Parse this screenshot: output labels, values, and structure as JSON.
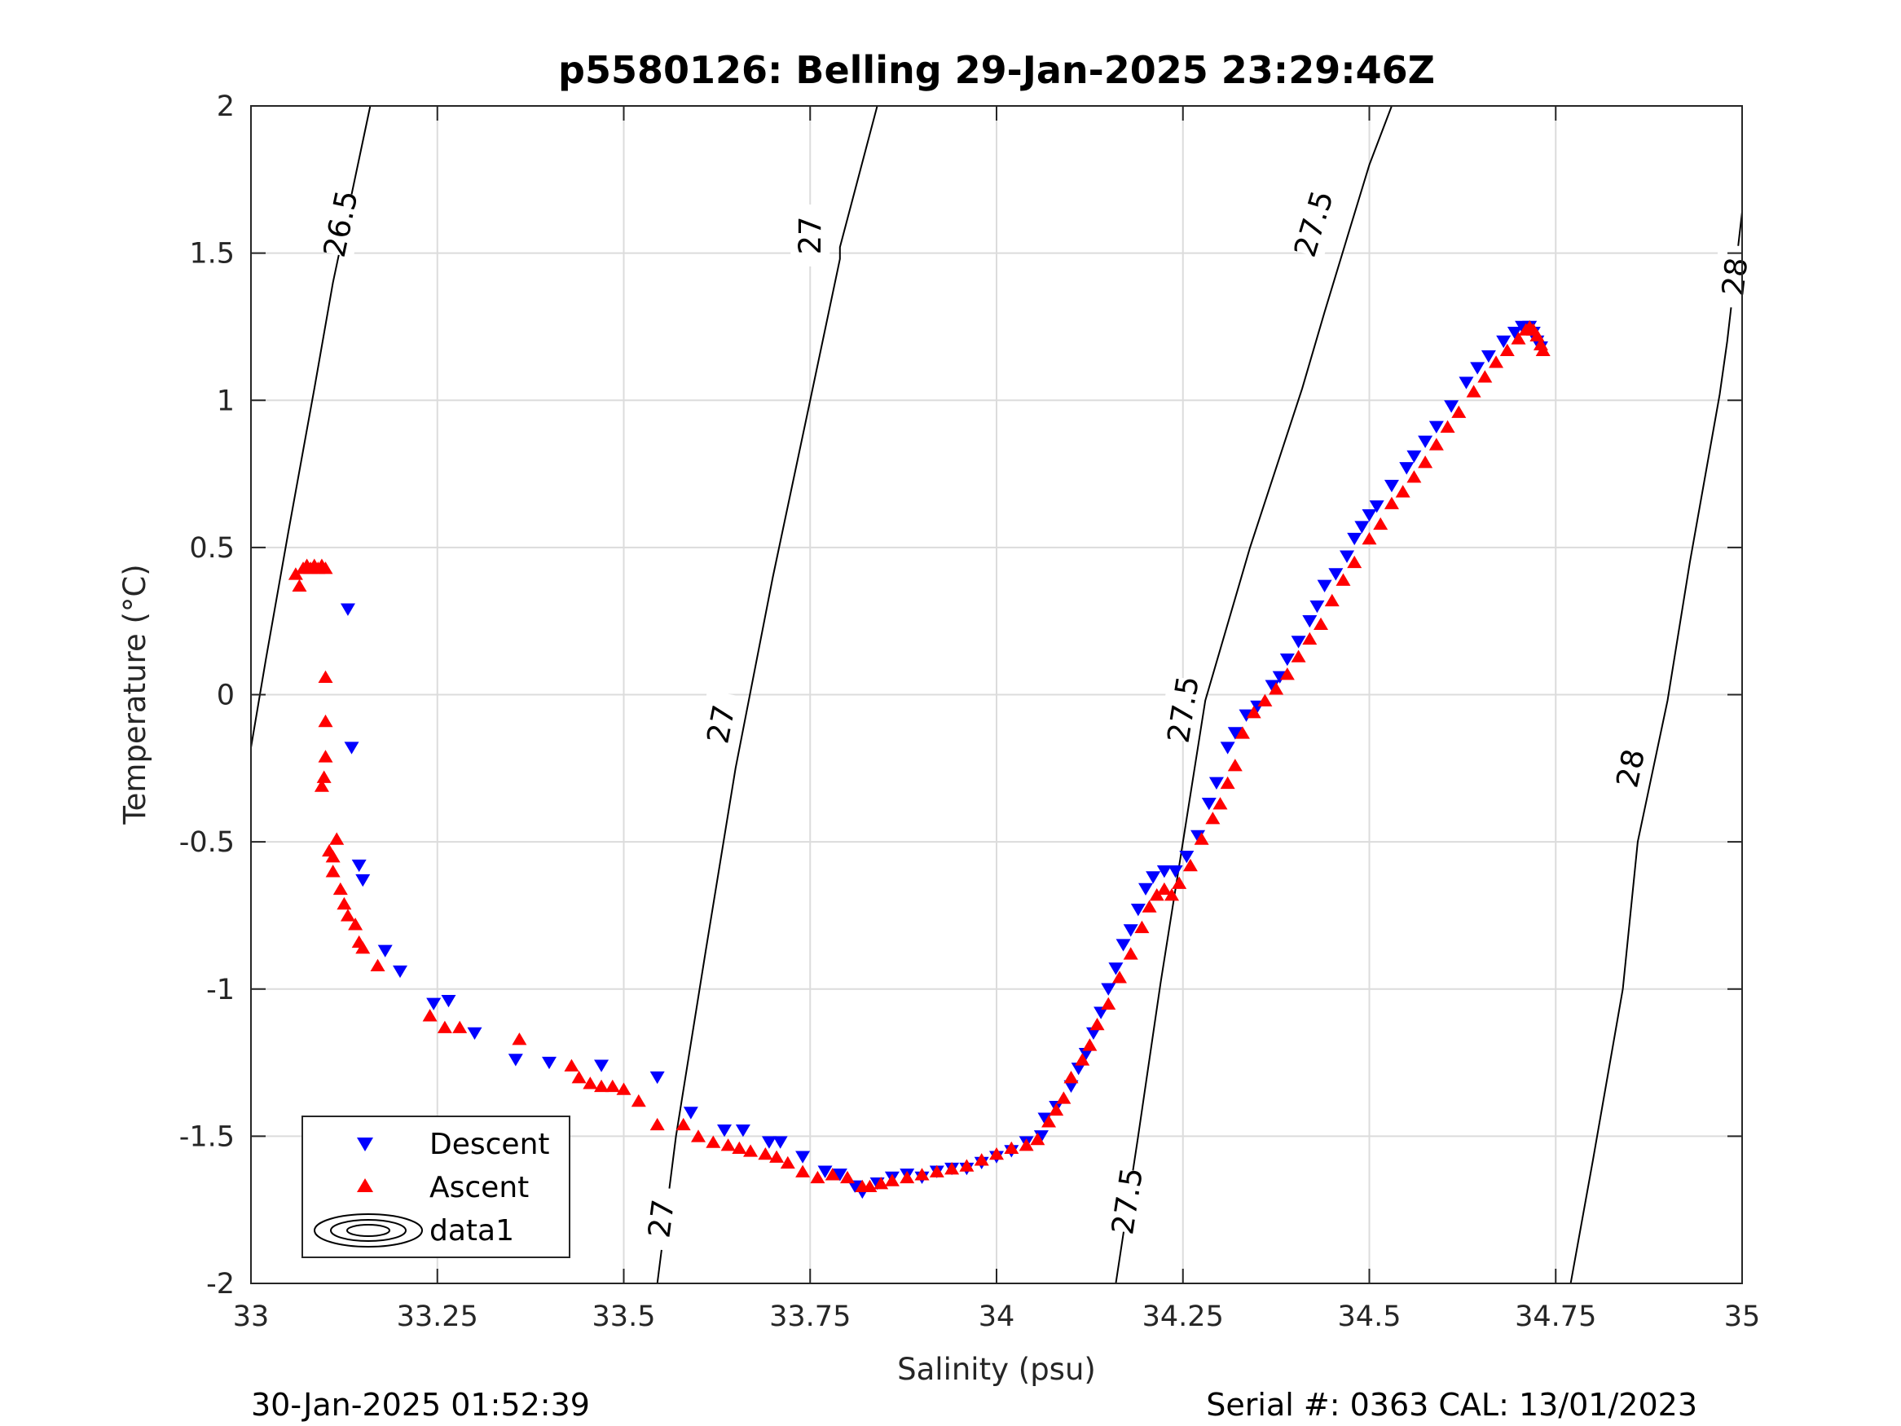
{
  "chart_data": {
    "type": "scatter",
    "title": "p5580126: Belling 29-Jan-2025 23:29:46Z",
    "xlabel": "Salinity (psu)",
    "ylabel": "Temperature (°C)",
    "xlim": [
      33,
      35
    ],
    "ylim": [
      -2,
      2
    ],
    "xticks": [
      33,
      33.25,
      33.5,
      33.75,
      34,
      34.25,
      34.5,
      34.75,
      35
    ],
    "xtick_labels": [
      "33",
      "33.25",
      "33.5",
      "33.75",
      "34",
      "34.25",
      "34.5",
      "34.75",
      "35"
    ],
    "yticks": [
      -2,
      -1.5,
      -1,
      -0.5,
      0,
      0.5,
      1,
      1.5,
      2
    ],
    "ytick_labels": [
      "-2",
      "-1.5",
      "-1",
      "-0.5",
      "0",
      "0.5",
      "1",
      "1.5",
      "2"
    ],
    "grid": true,
    "legend_position": "bottom-left",
    "series": [
      {
        "name": "Descent",
        "marker": "triangle-down",
        "color": "#0000ff",
        "points": [
          [
            33.13,
            0.29
          ],
          [
            33.135,
            -0.18
          ],
          [
            33.145,
            -0.58
          ],
          [
            33.15,
            -0.63
          ],
          [
            33.18,
            -0.87
          ],
          [
            33.2,
            -0.94
          ],
          [
            33.245,
            -1.05
          ],
          [
            33.265,
            -1.04
          ],
          [
            33.3,
            -1.15
          ],
          [
            33.355,
            -1.24
          ],
          [
            33.4,
            -1.25
          ],
          [
            33.47,
            -1.26
          ],
          [
            33.545,
            -1.3
          ],
          [
            33.59,
            -1.42
          ],
          [
            33.635,
            -1.48
          ],
          [
            33.66,
            -1.48
          ],
          [
            33.695,
            -1.52
          ],
          [
            33.71,
            -1.52
          ],
          [
            33.74,
            -1.57
          ],
          [
            33.77,
            -1.62
          ],
          [
            33.79,
            -1.63
          ],
          [
            33.81,
            -1.67
          ],
          [
            33.82,
            -1.69
          ],
          [
            33.84,
            -1.66
          ],
          [
            33.86,
            -1.64
          ],
          [
            33.88,
            -1.63
          ],
          [
            33.9,
            -1.64
          ],
          [
            33.92,
            -1.62
          ],
          [
            33.94,
            -1.61
          ],
          [
            33.96,
            -1.61
          ],
          [
            33.98,
            -1.59
          ],
          [
            34.0,
            -1.57
          ],
          [
            34.02,
            -1.55
          ],
          [
            34.04,
            -1.52
          ],
          [
            34.06,
            -1.5
          ],
          [
            34.065,
            -1.44
          ],
          [
            34.08,
            -1.4
          ],
          [
            34.1,
            -1.33
          ],
          [
            34.11,
            -1.27
          ],
          [
            34.12,
            -1.22
          ],
          [
            34.13,
            -1.15
          ],
          [
            34.14,
            -1.08
          ],
          [
            34.15,
            -1.0
          ],
          [
            34.16,
            -0.93
          ],
          [
            34.17,
            -0.85
          ],
          [
            34.18,
            -0.8
          ],
          [
            34.19,
            -0.73
          ],
          [
            34.2,
            -0.66
          ],
          [
            34.21,
            -0.62
          ],
          [
            34.225,
            -0.6
          ],
          [
            34.24,
            -0.6
          ],
          [
            34.255,
            -0.55
          ],
          [
            34.27,
            -0.48
          ],
          [
            34.285,
            -0.37
          ],
          [
            34.295,
            -0.3
          ],
          [
            34.31,
            -0.18
          ],
          [
            34.32,
            -0.13
          ],
          [
            34.335,
            -0.07
          ],
          [
            34.35,
            -0.04
          ],
          [
            34.37,
            0.03
          ],
          [
            34.38,
            0.06
          ],
          [
            34.39,
            0.12
          ],
          [
            34.405,
            0.18
          ],
          [
            34.42,
            0.25
          ],
          [
            34.43,
            0.3
          ],
          [
            34.44,
            0.37
          ],
          [
            34.455,
            0.41
          ],
          [
            34.47,
            0.47
          ],
          [
            34.48,
            0.53
          ],
          [
            34.49,
            0.57
          ],
          [
            34.5,
            0.61
          ],
          [
            34.51,
            0.64
          ],
          [
            34.53,
            0.71
          ],
          [
            34.55,
            0.77
          ],
          [
            34.56,
            0.81
          ],
          [
            34.575,
            0.86
          ],
          [
            34.59,
            0.91
          ],
          [
            34.61,
            0.98
          ],
          [
            34.63,
            1.06
          ],
          [
            34.645,
            1.11
          ],
          [
            34.66,
            1.15
          ],
          [
            34.68,
            1.2
          ],
          [
            34.695,
            1.23
          ],
          [
            34.705,
            1.25
          ],
          [
            34.715,
            1.25
          ],
          [
            34.72,
            1.23
          ],
          [
            34.725,
            1.2
          ],
          [
            34.73,
            1.18
          ]
        ]
      },
      {
        "name": "Ascent",
        "marker": "triangle-up",
        "color": "#ff0000",
        "points": [
          [
            33.06,
            0.41
          ],
          [
            33.065,
            0.37
          ],
          [
            33.07,
            0.43
          ],
          [
            33.075,
            0.44
          ],
          [
            33.08,
            0.43
          ],
          [
            33.085,
            0.44
          ],
          [
            33.09,
            0.43
          ],
          [
            33.095,
            0.44
          ],
          [
            33.1,
            0.43
          ],
          [
            33.1,
            0.06
          ],
          [
            33.1,
            -0.09
          ],
          [
            33.1,
            -0.21
          ],
          [
            33.098,
            -0.28
          ],
          [
            33.095,
            -0.31
          ],
          [
            33.105,
            -0.53
          ],
          [
            33.11,
            -0.55
          ],
          [
            33.115,
            -0.49
          ],
          [
            33.11,
            -0.6
          ],
          [
            33.12,
            -0.66
          ],
          [
            33.125,
            -0.71
          ],
          [
            33.13,
            -0.75
          ],
          [
            33.14,
            -0.78
          ],
          [
            33.145,
            -0.84
          ],
          [
            33.15,
            -0.86
          ],
          [
            33.17,
            -0.92
          ],
          [
            33.24,
            -1.09
          ],
          [
            33.26,
            -1.13
          ],
          [
            33.28,
            -1.13
          ],
          [
            33.36,
            -1.17
          ],
          [
            33.43,
            -1.26
          ],
          [
            33.44,
            -1.3
          ],
          [
            33.455,
            -1.32
          ],
          [
            33.47,
            -1.33
          ],
          [
            33.485,
            -1.33
          ],
          [
            33.5,
            -1.34
          ],
          [
            33.52,
            -1.38
          ],
          [
            33.545,
            -1.46
          ],
          [
            33.58,
            -1.46
          ],
          [
            33.6,
            -1.5
          ],
          [
            33.62,
            -1.52
          ],
          [
            33.64,
            -1.53
          ],
          [
            33.655,
            -1.54
          ],
          [
            33.67,
            -1.55
          ],
          [
            33.69,
            -1.56
          ],
          [
            33.705,
            -1.57
          ],
          [
            33.72,
            -1.59
          ],
          [
            33.74,
            -1.62
          ],
          [
            33.76,
            -1.64
          ],
          [
            33.78,
            -1.63
          ],
          [
            33.8,
            -1.64
          ],
          [
            33.82,
            -1.67
          ],
          [
            33.83,
            -1.67
          ],
          [
            33.845,
            -1.66
          ],
          [
            33.86,
            -1.65
          ],
          [
            33.88,
            -1.64
          ],
          [
            33.9,
            -1.63
          ],
          [
            33.92,
            -1.62
          ],
          [
            33.94,
            -1.61
          ],
          [
            33.96,
            -1.6
          ],
          [
            33.98,
            -1.58
          ],
          [
            34.0,
            -1.56
          ],
          [
            34.02,
            -1.54
          ],
          [
            34.04,
            -1.53
          ],
          [
            34.055,
            -1.51
          ],
          [
            34.07,
            -1.45
          ],
          [
            34.08,
            -1.41
          ],
          [
            34.09,
            -1.37
          ],
          [
            34.1,
            -1.3
          ],
          [
            34.115,
            -1.24
          ],
          [
            34.125,
            -1.19
          ],
          [
            34.135,
            -1.12
          ],
          [
            34.15,
            -1.05
          ],
          [
            34.165,
            -0.96
          ],
          [
            34.18,
            -0.88
          ],
          [
            34.195,
            -0.79
          ],
          [
            34.205,
            -0.72
          ],
          [
            34.215,
            -0.68
          ],
          [
            34.225,
            -0.66
          ],
          [
            34.235,
            -0.68
          ],
          [
            34.245,
            -0.64
          ],
          [
            34.26,
            -0.58
          ],
          [
            34.275,
            -0.49
          ],
          [
            34.29,
            -0.42
          ],
          [
            34.3,
            -0.37
          ],
          [
            34.31,
            -0.3
          ],
          [
            34.32,
            -0.24
          ],
          [
            34.33,
            -0.13
          ],
          [
            34.345,
            -0.06
          ],
          [
            34.36,
            -0.02
          ],
          [
            34.375,
            0.02
          ],
          [
            34.39,
            0.07
          ],
          [
            34.405,
            0.13
          ],
          [
            34.42,
            0.19
          ],
          [
            34.435,
            0.24
          ],
          [
            34.45,
            0.32
          ],
          [
            34.465,
            0.39
          ],
          [
            34.48,
            0.45
          ],
          [
            34.5,
            0.53
          ],
          [
            34.515,
            0.58
          ],
          [
            34.53,
            0.65
          ],
          [
            34.545,
            0.69
          ],
          [
            34.56,
            0.74
          ],
          [
            34.575,
            0.79
          ],
          [
            34.59,
            0.85
          ],
          [
            34.605,
            0.91
          ],
          [
            34.62,
            0.96
          ],
          [
            34.64,
            1.03
          ],
          [
            34.655,
            1.08
          ],
          [
            34.67,
            1.13
          ],
          [
            34.685,
            1.17
          ],
          [
            34.7,
            1.21
          ],
          [
            34.71,
            1.24
          ],
          [
            34.715,
            1.25
          ],
          [
            34.72,
            1.24
          ],
          [
            34.725,
            1.22
          ],
          [
            34.73,
            1.19
          ],
          [
            34.733,
            1.17
          ]
        ]
      }
    ],
    "contours": [
      {
        "level": "26.5",
        "points": [
          [
            33.0,
            -0.18
          ],
          [
            33.02,
            0.12
          ],
          [
            33.05,
            0.55
          ],
          [
            33.085,
            1.04
          ],
          [
            33.11,
            1.4
          ],
          [
            33.125,
            1.58
          ],
          [
            33.16,
            2.0
          ]
        ],
        "label_positions": [
          [
            33.12,
            1.6
          ]
        ]
      },
      {
        "level": "27",
        "points": [
          [
            33.545,
            -2.0
          ],
          [
            33.57,
            -1.5
          ],
          [
            33.61,
            -0.87
          ],
          [
            33.65,
            -0.25
          ],
          [
            33.7,
            0.4
          ],
          [
            33.75,
            1.0
          ],
          [
            33.79,
            1.48
          ],
          [
            33.79,
            1.52
          ],
          [
            33.84,
            2.0
          ]
        ],
        "label_positions": [
          [
            33.55,
            -1.78
          ],
          [
            33.63,
            -0.1
          ],
          [
            33.75,
            1.56
          ]
        ]
      },
      {
        "level": "27.5",
        "points": [
          [
            34.16,
            -2.0
          ],
          [
            34.19,
            -1.5
          ],
          [
            34.22,
            -0.98
          ],
          [
            34.25,
            -0.5
          ],
          [
            34.28,
            -0.02
          ],
          [
            34.34,
            0.5
          ],
          [
            34.41,
            1.04
          ],
          [
            34.44,
            1.3
          ],
          [
            34.47,
            1.55
          ],
          [
            34.5,
            1.8
          ],
          [
            34.53,
            2.0
          ]
        ],
        "label_positions": [
          [
            34.175,
            -1.72
          ],
          [
            34.25,
            -0.05
          ],
          [
            34.425,
            1.6
          ]
        ]
      },
      {
        "level": "28",
        "points": [
          [
            34.77,
            -2.0
          ],
          [
            34.8,
            -1.58
          ],
          [
            34.84,
            -1.0
          ],
          [
            34.86,
            -0.5
          ],
          [
            34.9,
            -0.02
          ],
          [
            34.93,
            0.45
          ],
          [
            34.97,
            1.02
          ],
          [
            34.98,
            1.2
          ],
          [
            35.0,
            1.64
          ]
        ],
        "label_positions": [
          [
            34.85,
            -0.25
          ],
          [
            34.99,
            1.42
          ]
        ]
      }
    ],
    "legend": {
      "entries": [
        {
          "label": "Descent",
          "marker": "triangle-down",
          "color": "#0000ff"
        },
        {
          "label": "Ascent",
          "marker": "triangle-up",
          "color": "#ff0000"
        },
        {
          "label": "data1",
          "marker": "contour",
          "color": "#000000"
        }
      ]
    }
  },
  "footer": {
    "timestamp": "30-Jan-2025 01:52:39",
    "serial": "Serial #: 0363  CAL: 13/01/2023"
  }
}
